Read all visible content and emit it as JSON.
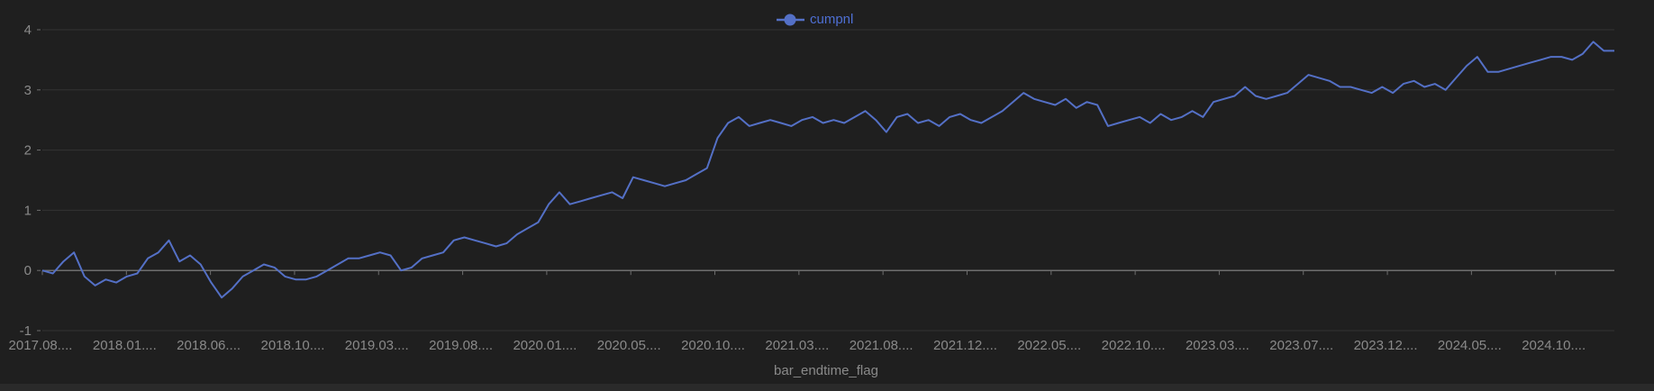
{
  "legend": {
    "label": "cumpnl"
  },
  "colors": {
    "background": "#1f1f1f",
    "series": "#5470c6",
    "grid": "#333333",
    "axis": "#6e6e6e",
    "text": "#8a8a8a"
  },
  "chart_data": {
    "type": "line",
    "title": "",
    "xlabel": "bar_endtime_flag",
    "ylabel": "",
    "ylim": [
      -1,
      4
    ],
    "yticks": [
      -1,
      0,
      1,
      2,
      3,
      4
    ],
    "grid": true,
    "legend_position": "top-center",
    "x_tick_labels": [
      "2017.08....",
      "2018.01....",
      "2018.06....",
      "2018.10....",
      "2019.03....",
      "2019.08....",
      "2020.01....",
      "2020.05....",
      "2020.10....",
      "2021.03....",
      "2021.08....",
      "2021.12....",
      "2022.05....",
      "2022.10....",
      "2023.03....",
      "2023.07....",
      "2023.12....",
      "2024.05....",
      "2024.10...."
    ],
    "series": [
      {
        "name": "cumpnl",
        "values": [
          0,
          -0.05,
          0.15,
          0.3,
          -0.1,
          -0.25,
          -0.15,
          -0.2,
          -0.1,
          -0.05,
          0.2,
          0.3,
          0.5,
          0.15,
          0.25,
          0.1,
          -0.2,
          -0.45,
          -0.3,
          -0.1,
          0.0,
          0.1,
          0.05,
          -0.1,
          -0.15,
          -0.15,
          -0.1,
          0.0,
          0.1,
          0.2,
          0.2,
          0.25,
          0.3,
          0.25,
          0.0,
          0.05,
          0.2,
          0.25,
          0.3,
          0.5,
          0.55,
          0.5,
          0.45,
          0.4,
          0.45,
          0.6,
          0.7,
          0.8,
          1.1,
          1.3,
          1.1,
          1.15,
          1.2,
          1.25,
          1.3,
          1.2,
          1.55,
          1.5,
          1.45,
          1.4,
          1.45,
          1.5,
          1.6,
          1.7,
          2.2,
          2.45,
          2.55,
          2.4,
          2.45,
          2.5,
          2.45,
          2.4,
          2.5,
          2.55,
          2.45,
          2.5,
          2.45,
          2.55,
          2.65,
          2.5,
          2.3,
          2.55,
          2.6,
          2.45,
          2.5,
          2.4,
          2.55,
          2.6,
          2.5,
          2.45,
          2.55,
          2.65,
          2.8,
          2.95,
          2.85,
          2.8,
          2.75,
          2.85,
          2.7,
          2.8,
          2.75,
          2.4,
          2.45,
          2.5,
          2.55,
          2.45,
          2.6,
          2.5,
          2.55,
          2.65,
          2.55,
          2.8,
          2.85,
          2.9,
          3.05,
          2.9,
          2.85,
          2.9,
          2.95,
          3.1,
          3.25,
          3.2,
          3.15,
          3.05,
          3.05,
          3.0,
          2.95,
          3.05,
          2.95,
          3.1,
          3.15,
          3.05,
          3.1,
          3.0,
          3.2,
          3.4,
          3.55,
          3.3,
          3.3,
          3.35,
          3.4,
          3.45,
          3.5,
          3.55,
          3.55,
          3.5,
          3.6,
          3.8,
          3.65,
          3.65
        ]
      }
    ]
  }
}
